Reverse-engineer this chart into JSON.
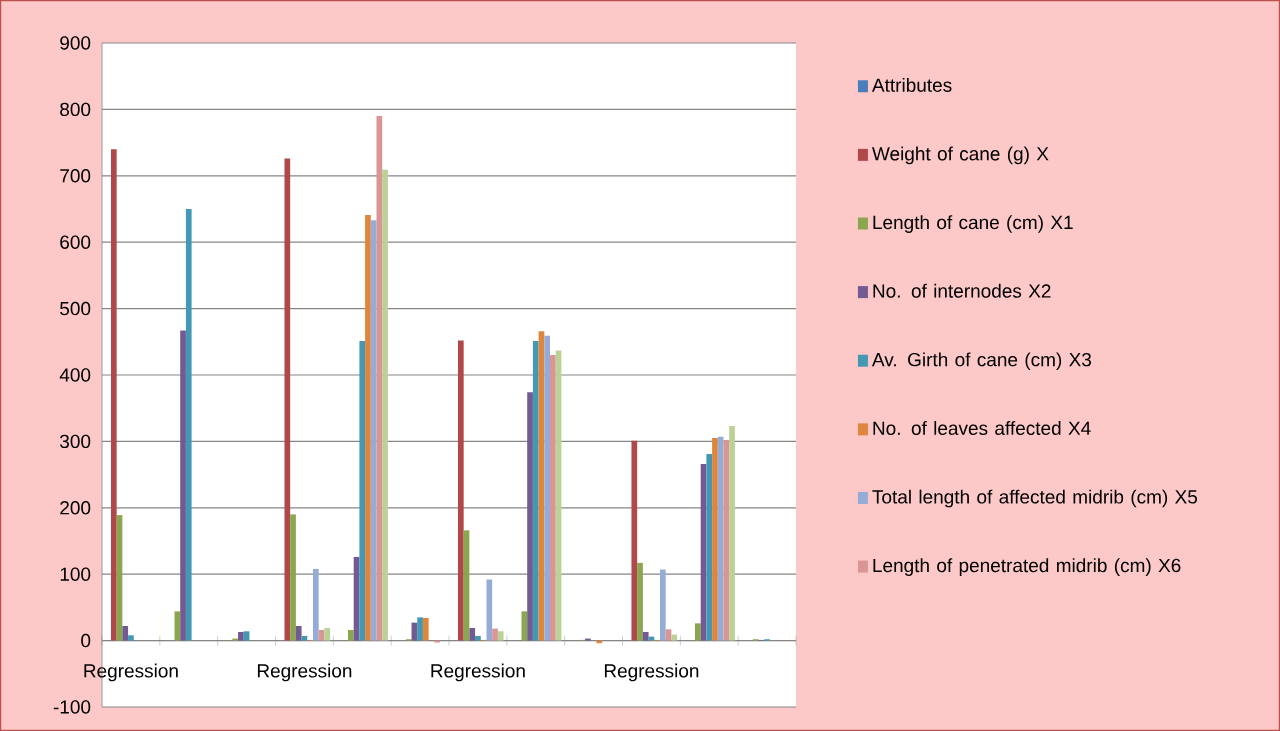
{
  "chart_data": {
    "type": "bar",
    "categories": [
      "Regression",
      null,
      null,
      "Regression",
      null,
      null,
      "Regression",
      null,
      null,
      "Regression",
      null,
      null
    ],
    "series": [
      {
        "name": "Attributes",
        "color": "#4a7ebb",
        "values": [
          0,
          0,
          0,
          0,
          0,
          0,
          0,
          0,
          0,
          0,
          0,
          0
        ]
      },
      {
        "name": "Weight of cane (g) X",
        "color": "#b0484a",
        "values": [
          740,
          0,
          0,
          726,
          0,
          0,
          452,
          0,
          0,
          301,
          0,
          0
        ]
      },
      {
        "name": "Length of cane (cm) X1",
        "color": "#8aa64f",
        "values": [
          189,
          44,
          3,
          190,
          16,
          2,
          166,
          44,
          1,
          117,
          26,
          2
        ]
      },
      {
        "name": "No. of internodes X2",
        "color": "#745a92",
        "values": [
          22,
          467,
          13,
          22,
          126,
          27,
          19,
          374,
          3,
          13,
          266,
          1
        ]
      },
      {
        "name": "Av. Girth of cane (cm) X3",
        "color": "#4399b3",
        "values": [
          8,
          650,
          14,
          7,
          451,
          35,
          7,
          451,
          0,
          6,
          281,
          2
        ]
      },
      {
        "name": "No. of leaves affected X4",
        "color": "#e0863c",
        "values": [
          0,
          0,
          0,
          1,
          641,
          34,
          1,
          466,
          -4,
          1,
          305,
          null
        ]
      },
      {
        "name": "Total length of affected midrib (cm) X5",
        "color": "#95add6",
        "values": [
          0,
          0,
          0,
          108,
          633,
          0,
          92,
          459,
          0,
          107,
          307,
          0
        ]
      },
      {
        "name": "Length of penetrated midrib (cm) X6",
        "color": "#d99694",
        "values": [
          0,
          0,
          0,
          16,
          790,
          -3,
          18,
          430,
          0,
          17,
          302,
          0
        ]
      },
      {
        "color": "#bcd196",
        "values": [
          0,
          0,
          0,
          19,
          709,
          0,
          14,
          437,
          0,
          9,
          323,
          null
        ]
      }
    ],
    "ylim": [
      -100,
      900
    ],
    "yticks": [
      -100,
      0,
      100,
      200,
      300,
      400,
      500,
      600,
      700,
      800,
      900
    ],
    "grid": "y",
    "legend": "right"
  }
}
